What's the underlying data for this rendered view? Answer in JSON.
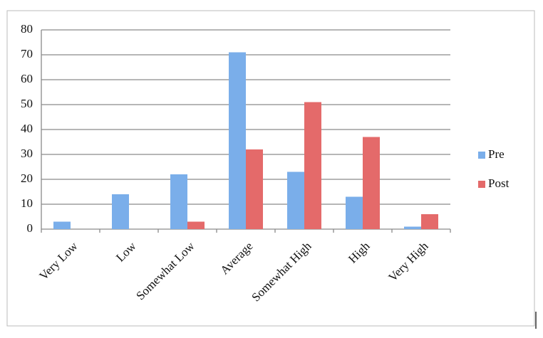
{
  "chart_data": {
    "type": "bar",
    "categories": [
      "Very Low",
      "Low",
      "Somewhat Low",
      "Average",
      "Somewhat High",
      "High",
      "Very High"
    ],
    "series": [
      {
        "name": "Pre",
        "color": "#7aaeea",
        "values": [
          3,
          14,
          22,
          71,
          23,
          13,
          1
        ]
      },
      {
        "name": "Post",
        "color": "#e46a6a",
        "values": [
          0,
          0,
          3,
          32,
          51,
          37,
          6
        ]
      }
    ],
    "ylim": [
      0,
      80
    ],
    "yticks": [
      0,
      10,
      20,
      30,
      40,
      50,
      60,
      70,
      80
    ],
    "grid": true,
    "legend": "right"
  }
}
